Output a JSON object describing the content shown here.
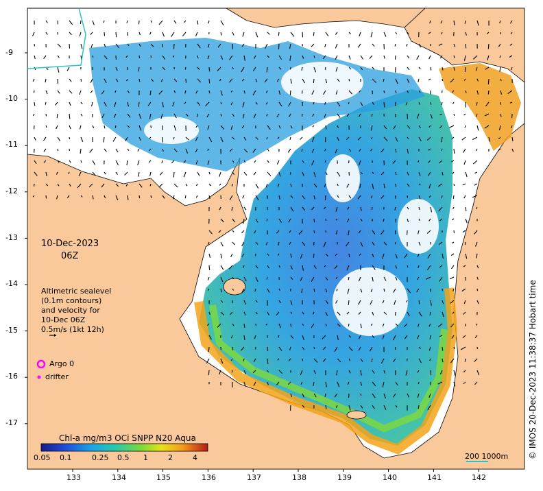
{
  "map": {
    "lat_ticks": [
      "-9",
      "-10",
      "-11",
      "-12",
      "-13",
      "-14",
      "-15",
      "-16",
      "-17"
    ],
    "lon_ticks": [
      "133",
      "134",
      "135",
      "136",
      "137",
      "138",
      "139",
      "140",
      "141",
      "142"
    ],
    "date_line1": "10-Dec-2023",
    "date_line2": "06Z",
    "altimetry_lines": [
      "Altimetric sealevel",
      "(0.1m contours)",
      "and velocity for",
      "10-Dec 06Z",
      "0.5m/s (1kt 12h)"
    ],
    "argo_label": "Argo 0",
    "drifter_label": "drifter",
    "colorbar_title": "Chl-a mg/m3 OCi SNPP N20 Aqua",
    "colorbar_ticks": [
      "0.05",
      "0.1",
      "0.25",
      "0.5",
      "1",
      "2",
      "4"
    ],
    "scale_label": "200  1000m",
    "credit": "© IMOS 20-Dec-2023 11:38:37 Hobart time",
    "colors": {
      "land": "#f9c89b",
      "cloud": "#ffffff",
      "coast": "#000000",
      "argo": "#ff00ff",
      "scale": "#2ec4c4"
    }
  }
}
